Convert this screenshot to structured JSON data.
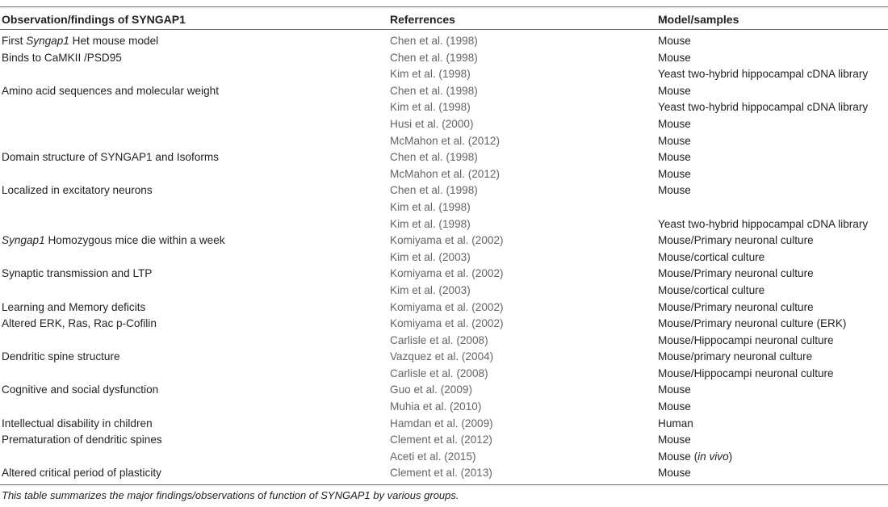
{
  "table": {
    "headers": [
      "Observation/findings of SYNGAP1",
      "Referrences",
      "Model/samples"
    ],
    "rows": [
      {
        "finding": "First ",
        "finding_italic": "Syngap1",
        "finding_rest": " Het mouse model",
        "reference": "Chen et al. (1998)",
        "model": "Mouse"
      },
      {
        "finding": "Binds to CaMKII /PSD95",
        "reference": "Chen et al. (1998)",
        "model": "Mouse"
      },
      {
        "finding": "",
        "reference": "Kim et al. (1998)",
        "model": "Yeast two-hybrid hippocampal cDNA library"
      },
      {
        "finding": "Amino acid sequences and molecular weight",
        "reference": "Chen et al. (1998)",
        "model": "Mouse"
      },
      {
        "finding": "",
        "reference": "Kim et al. (1998)",
        "model": "Yeast two-hybrid hippocampal cDNA library"
      },
      {
        "finding": "",
        "reference": "Husi et al. (2000)",
        "model": "Mouse"
      },
      {
        "finding": "",
        "reference": "McMahon et al. (2012)",
        "model": "Mouse"
      },
      {
        "finding": "Domain structure of SYNGAP1 and Isoforms",
        "reference": "Chen et al. (1998)",
        "model": "Mouse"
      },
      {
        "finding": "",
        "reference": "McMahon et al. (2012)",
        "model": "Mouse"
      },
      {
        "finding": "Localized in excitatory neurons",
        "reference": "Chen et al. (1998)",
        "model": "Mouse"
      },
      {
        "finding": "",
        "reference": "Kim et al. (1998)",
        "model": ""
      },
      {
        "finding": "",
        "reference": "Kim et al. (1998)",
        "model": "Yeast two-hybrid hippocampal cDNA library"
      },
      {
        "finding": "",
        "finding_italic": "Syngap1",
        "finding_rest": " Homozygous mice die within a week",
        "reference": "Komiyama et al. (2002)",
        "model": "Mouse/Primary neuronal culture"
      },
      {
        "finding": "",
        "reference": "Kim et al. (2003)",
        "model": "Mouse/cortical culture"
      },
      {
        "finding": "Synaptic transmission and LTP",
        "reference": "Komiyama et al. (2002)",
        "model": "Mouse/Primary neuronal culture"
      },
      {
        "finding": "",
        "reference": "Kim et al. (2003)",
        "model": "Mouse/cortical culture"
      },
      {
        "finding": "Learning and Memory deficits",
        "reference": "Komiyama et al. (2002)",
        "model": "Mouse/Primary neuronal culture"
      },
      {
        "finding": "Altered ERK, Ras, Rac p-Cofilin",
        "reference": "Komiyama et al. (2002)",
        "model": "Mouse/Primary neuronal culture (ERK)"
      },
      {
        "finding": "",
        "reference": "Carlisle et al. (2008)",
        "model": "Mouse/Hippocampi neuronal culture"
      },
      {
        "finding": "Dendritic spine structure",
        "reference": "Vazquez et al. (2004)",
        "model": "Mouse/primary neuronal culture"
      },
      {
        "finding": "",
        "reference": "Carlisle et al. (2008)",
        "model": "Mouse/Hippocampi neuronal culture"
      },
      {
        "finding": "Cognitive and social dysfunction",
        "reference": "Guo et al. (2009)",
        "model": "Mouse"
      },
      {
        "finding": "",
        "reference": "Muhia et al. (2010)",
        "model": "Mouse"
      },
      {
        "finding": "Intellectual disability in children",
        "reference": "Hamdan et al. (2009)",
        "model": "Human"
      },
      {
        "finding": "Prematuration of dendritic spines",
        "reference": "Clement et al. (2012)",
        "model": "Mouse"
      },
      {
        "finding": "",
        "reference": "Aceti et al. (2015)",
        "model": "Mouse (",
        "model_italic": "in vivo",
        "model_rest": ")"
      },
      {
        "finding": "Altered critical period of plasticity",
        "reference": "Clement et al. (2013)",
        "model": "Mouse"
      }
    ]
  },
  "caption": "This table summarizes the major findings/observations of function of SYNGAP1 by various groups."
}
